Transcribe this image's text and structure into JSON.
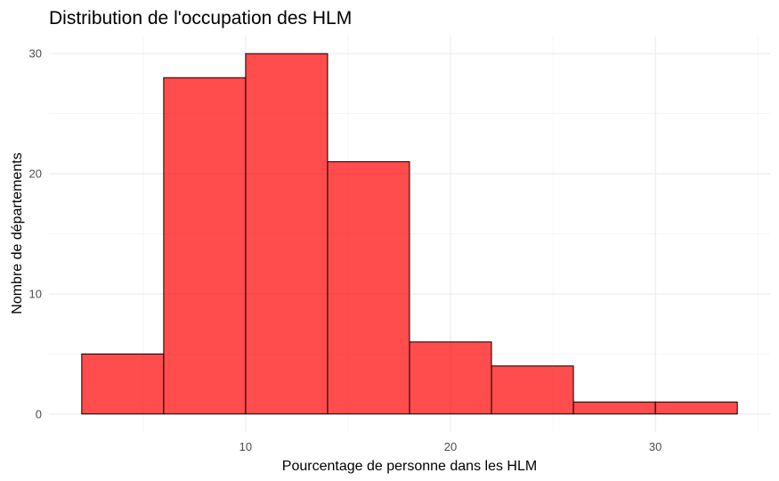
{
  "chart_data": {
    "type": "histogram",
    "title": "Distribution de l'occupation des HLM",
    "xlabel": "Pourcentage de personne dans les HLM",
    "ylabel": "Nombre de départements",
    "bins": [
      {
        "x0": 2,
        "x1": 6,
        "count": 5
      },
      {
        "x0": 6,
        "x1": 10,
        "count": 28
      },
      {
        "x0": 10,
        "x1": 14,
        "count": 30
      },
      {
        "x0": 14,
        "x1": 18,
        "count": 21
      },
      {
        "x0": 18,
        "x1": 22,
        "count": 6
      },
      {
        "x0": 22,
        "x1": 26,
        "count": 4
      },
      {
        "x0": 26,
        "x1": 30,
        "count": 1
      },
      {
        "x0": 30,
        "x1": 34,
        "count": 1
      }
    ],
    "xticks": [
      10,
      20,
      30
    ],
    "yticks": [
      0,
      10,
      20,
      30
    ],
    "xlim": [
      0.4,
      35.6
    ],
    "ylim": [
      -1.5,
      31.5
    ],
    "grid": true,
    "legend": "none",
    "bar_fill": "#ff0000",
    "bar_opacity": 0.7,
    "bar_edge": "#000000"
  }
}
